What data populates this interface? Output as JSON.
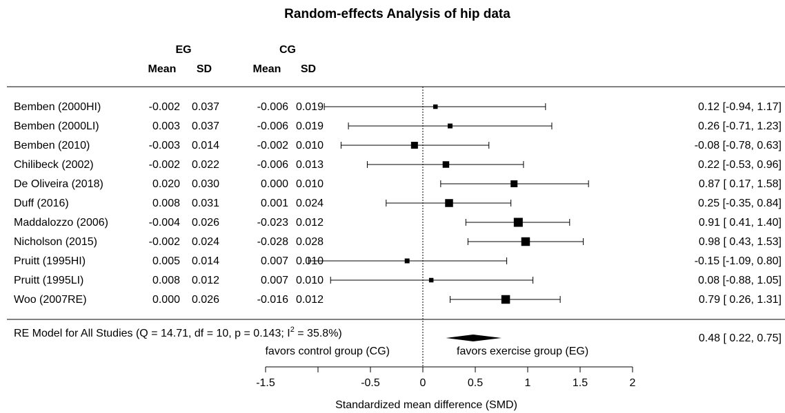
{
  "chart_data": {
    "type": "forest",
    "title": "Random-effects Analysis of hip data",
    "group_headers": {
      "eg": "EG",
      "cg": "CG",
      "mean": "Mean",
      "sd": "SD"
    },
    "studies": [
      {
        "name": "Bemben (2000HI)",
        "eg_mean": "-0.002",
        "eg_sd": "0.037",
        "cg_mean": "-0.006",
        "cg_sd": "0.019",
        "smd": 0.12,
        "lo": -0.94,
        "hi": 1.17,
        "weight": 0.35,
        "label": "0.12 [-0.94, 1.17]"
      },
      {
        "name": "Bemben (2000LI)",
        "eg_mean": "0.003",
        "eg_sd": "0.037",
        "cg_mean": "-0.006",
        "cg_sd": "0.019",
        "smd": 0.26,
        "lo": -0.71,
        "hi": 1.23,
        "weight": 0.4,
        "label": "0.26 [-0.71, 1.23]"
      },
      {
        "name": "Bemben (2010)",
        "eg_mean": "-0.003",
        "eg_sd": "0.014",
        "cg_mean": "-0.002",
        "cg_sd": "0.010",
        "smd": -0.08,
        "lo": -0.78,
        "hi": 0.63,
        "weight": 0.7,
        "label": "-0.08 [-0.78, 0.63]"
      },
      {
        "name": "Chilibeck (2002)",
        "eg_mean": "-0.002",
        "eg_sd": "0.022",
        "cg_mean": "-0.006",
        "cg_sd": "0.013",
        "smd": 0.22,
        "lo": -0.53,
        "hi": 0.96,
        "weight": 0.65,
        "label": "0.22 [-0.53, 0.96]"
      },
      {
        "name": "De Oliveira (2018)",
        "eg_mean": "0.020",
        "eg_sd": "0.030",
        "cg_mean": "0.000",
        "cg_sd": "0.010",
        "smd": 0.87,
        "lo": 0.17,
        "hi": 1.58,
        "weight": 0.7,
        "label": "0.87 [ 0.17, 1.58]"
      },
      {
        "name": "Duff (2016)",
        "eg_mean": "0.008",
        "eg_sd": "0.031",
        "cg_mean": "0.001",
        "cg_sd": "0.024",
        "smd": 0.25,
        "lo": -0.35,
        "hi": 0.84,
        "weight": 0.85,
        "label": "0.25 [-0.35, 0.84]"
      },
      {
        "name": "Maddalozzo (2006)",
        "eg_mean": "-0.004",
        "eg_sd": "0.026",
        "cg_mean": "-0.023",
        "cg_sd": "0.012",
        "smd": 0.91,
        "lo": 0.41,
        "hi": 1.4,
        "weight": 1.0,
        "label": "0.91 [ 0.41, 1.40]"
      },
      {
        "name": "Nicholson (2015)",
        "eg_mean": "-0.002",
        "eg_sd": "0.024",
        "cg_mean": "-0.028",
        "cg_sd": "0.028",
        "smd": 0.98,
        "lo": 0.43,
        "hi": 1.53,
        "weight": 0.95,
        "label": "0.98 [ 0.43, 1.53]"
      },
      {
        "name": "Pruitt (1995HI)",
        "eg_mean": "0.005",
        "eg_sd": "0.014",
        "cg_mean": "0.007",
        "cg_sd": "0.010",
        "smd": -0.15,
        "lo": -1.09,
        "hi": 0.8,
        "weight": 0.4,
        "label": "-0.15 [-1.09, 0.80]"
      },
      {
        "name": "Pruitt (1995LI)",
        "eg_mean": "0.008",
        "eg_sd": "0.012",
        "cg_mean": "0.007",
        "cg_sd": "0.010",
        "smd": 0.08,
        "lo": -0.88,
        "hi": 1.05,
        "weight": 0.35,
        "label": "0.08 [-0.88, 1.05]"
      },
      {
        "name": "Woo (2007RE)",
        "eg_mean": "0.000",
        "eg_sd": "0.026",
        "cg_mean": "-0.016",
        "cg_sd": "0.012",
        "smd": 0.79,
        "lo": 0.26,
        "hi": 1.31,
        "weight": 0.95,
        "label": "0.79 [ 0.26, 1.31]"
      }
    ],
    "summary": {
      "label_prefix": "RE Model for All Studies (Q = 14.71, df = 10, p = 0.143; I",
      "label_sup": "2",
      "label_suffix": " = 35.8%)",
      "smd": 0.48,
      "lo": 0.22,
      "hi": 0.75,
      "label": "0.48 [ 0.22, 0.75]"
    },
    "favors_left": "favors control group (CG)",
    "favors_right": "favors exercise group (EG)",
    "xlabel": "Standardized mean difference (SMD)",
    "xlim": [
      -1.5,
      2
    ],
    "xticks": [
      -1.5,
      -1,
      -0.5,
      0,
      0.5,
      1,
      1.5,
      2
    ],
    "xtick_labels": [
      "-1.5",
      "",
      "-0.5",
      "0",
      "0.5",
      "1",
      "1.5",
      "2"
    ],
    "reference_line": 0
  }
}
